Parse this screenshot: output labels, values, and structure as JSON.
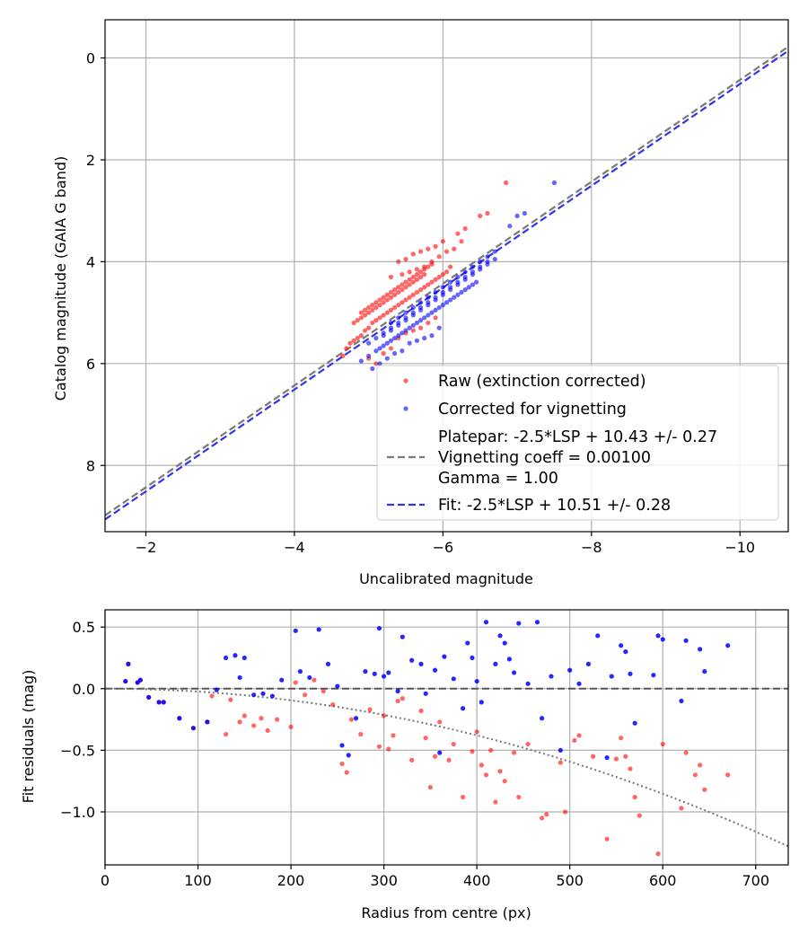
{
  "colors": {
    "raw": "#ff0000",
    "corrected": "#0000ff",
    "platepar_line": "#7a7a7a",
    "fit_line": "#3333ee",
    "zero_line": "#555555",
    "model_curve": "#777777"
  },
  "chart_data": [
    {
      "type": "scatter",
      "xlabel": "Uncalibrated magnitude",
      "ylabel": "Catalog magnitude (GAIA G band)",
      "xlim": [
        -1.45,
        -10.65
      ],
      "ylim": [
        9.3,
        -0.75
      ],
      "xticks": [
        -2,
        -4,
        -6,
        -8,
        -10
      ],
      "xtick_labels": [
        "−2",
        "−4",
        "−6",
        "−8",
        "−10"
      ],
      "yticks": [
        0,
        2,
        4,
        6,
        8
      ],
      "ytick_labels": [
        "0",
        "2",
        "4",
        "6",
        "8"
      ],
      "grid": true,
      "legend_position": "bottom-right",
      "legend": {
        "raw_label": "Raw (extinction corrected)",
        "corrected_label": "Corrected for vignetting",
        "platepar_line1": "Platepar: -2.5*LSP + 10.43 +/- 0.27",
        "platepar_line2": "Vignetting coeff = 0.00100",
        "platepar_line3": "Gamma = 1.00",
        "fit_label": "Fit: -2.5*LSP + 10.51 +/- 0.28"
      },
      "lines": [
        {
          "name": "platepar",
          "intercept": 10.43,
          "slope": 1.0
        },
        {
          "name": "fit",
          "intercept": 10.51,
          "slope": 1.0
        }
      ],
      "series": [
        {
          "name": "Raw (extinction corrected)",
          "x": [
            -4.65,
            -4.7,
            -4.75,
            -4.8,
            -4.85,
            -4.9,
            -4.95,
            -5.0,
            -5.05,
            -5.1,
            -5.15,
            -5.2,
            -5.25,
            -5.3,
            -5.35,
            -5.4,
            -5.45,
            -5.5,
            -5.55,
            -5.6,
            -5.65,
            -5.7,
            -5.75,
            -5.8,
            -5.85,
            -5.9,
            -5.95,
            -6.0,
            -6.05,
            -6.1,
            -4.9,
            -4.95,
            -5.0,
            -5.05,
            -5.1,
            -5.15,
            -5.2,
            -5.25,
            -5.3,
            -5.35,
            -5.4,
            -5.45,
            -5.5,
            -5.55,
            -5.6,
            -5.65,
            -5.7,
            -5.75,
            -5.8,
            -5.85,
            -4.8,
            -4.85,
            -4.9,
            -4.95,
            -5.0,
            -5.05,
            -5.1,
            -5.15,
            -5.2,
            -5.25,
            -5.3,
            -5.35,
            -5.4,
            -5.45,
            -5.5,
            -5.55,
            -5.6,
            -5.65,
            -5.7,
            -5.75,
            -5.4,
            -5.5,
            -5.6,
            -5.7,
            -5.8,
            -5.9,
            -6.0,
            -6.2,
            -6.3,
            -6.5,
            -6.6,
            -6.85,
            -5.3,
            -5.45,
            -5.55,
            -5.65,
            -5.75,
            -5.85,
            -5.95,
            -6.05,
            -6.15,
            -6.25,
            -5.0,
            -5.1,
            -5.2,
            -5.3,
            -5.4,
            -5.5,
            -5.6,
            -5.7,
            -5.8,
            -5.9
          ],
          "y": [
            5.85,
            5.7,
            5.6,
            5.55,
            5.5,
            5.45,
            5.35,
            5.3,
            5.2,
            5.15,
            5.1,
            5.05,
            5.0,
            4.95,
            4.9,
            4.85,
            4.8,
            4.75,
            4.7,
            4.65,
            4.6,
            4.55,
            4.5,
            4.45,
            4.4,
            4.35,
            4.3,
            4.25,
            4.2,
            4.1,
            5.0,
            4.95,
            4.9,
            4.85,
            4.8,
            4.75,
            4.7,
            4.65,
            4.6,
            4.55,
            4.5,
            4.45,
            4.4,
            4.35,
            4.3,
            4.25,
            4.2,
            4.15,
            4.1,
            4.05,
            5.2,
            5.15,
            5.1,
            5.05,
            5.0,
            4.95,
            4.9,
            4.85,
            4.8,
            4.75,
            4.7,
            4.65,
            4.6,
            4.55,
            4.5,
            4.45,
            4.4,
            4.35,
            4.3,
            4.25,
            4.0,
            3.95,
            3.85,
            3.8,
            3.75,
            3.7,
            3.6,
            3.45,
            3.35,
            3.1,
            3.05,
            2.45,
            4.3,
            4.25,
            4.2,
            4.15,
            4.1,
            4.0,
            3.9,
            3.8,
            3.75,
            3.6,
            5.9,
            6.0,
            5.8,
            5.7,
            5.5,
            5.4,
            5.35,
            5.3,
            5.2,
            5.1
          ]
        },
        {
          "name": "Corrected for vignetting",
          "x": [
            -4.9,
            -5.0,
            -5.1,
            -5.15,
            -5.2,
            -5.25,
            -5.3,
            -5.35,
            -5.4,
            -5.45,
            -5.5,
            -5.55,
            -5.6,
            -5.65,
            -5.7,
            -5.75,
            -5.8,
            -5.85,
            -5.9,
            -5.95,
            -6.0,
            -6.05,
            -6.1,
            -6.15,
            -6.2,
            -6.25,
            -6.3,
            -6.35,
            -6.4,
            -6.45,
            -5.3,
            -5.4,
            -5.5,
            -5.6,
            -5.7,
            -5.8,
            -5.9,
            -6.0,
            -6.1,
            -6.2,
            -6.3,
            -6.4,
            -6.5,
            -6.6,
            -5.2,
            -5.3,
            -5.4,
            -5.5,
            -5.6,
            -5.7,
            -5.8,
            -5.9,
            -6.0,
            -6.1,
            -6.2,
            -6.3,
            -6.4,
            -6.5,
            -6.6,
            -6.7,
            -5.0,
            -5.1,
            -5.2,
            -5.3,
            -5.4,
            -5.5,
            -5.6,
            -5.7,
            -5.8,
            -5.9,
            -6.0,
            -6.1,
            -6.2,
            -6.3,
            -6.4,
            -6.5,
            -6.6,
            -6.7,
            -6.9,
            -7.0,
            -7.1,
            -7.5,
            -5.05,
            -5.15,
            -5.25,
            -5.35,
            -5.45,
            -5.55,
            -5.65,
            -5.75,
            -5.85,
            -5.95
          ],
          "y": [
            5.95,
            5.85,
            5.75,
            5.7,
            5.65,
            5.6,
            5.55,
            5.5,
            5.45,
            5.4,
            5.35,
            5.3,
            5.25,
            5.2,
            5.15,
            5.1,
            5.05,
            5.0,
            4.95,
            4.9,
            4.85,
            4.8,
            4.75,
            4.7,
            4.65,
            4.6,
            4.55,
            4.5,
            4.45,
            4.4,
            5.2,
            5.1,
            5.0,
            4.9,
            4.8,
            4.7,
            4.6,
            4.5,
            4.4,
            4.3,
            4.2,
            4.1,
            4.0,
            3.9,
            5.45,
            5.35,
            5.25,
            5.15,
            5.05,
            4.95,
            4.85,
            4.75,
            4.65,
            4.55,
            4.45,
            4.35,
            4.25,
            4.15,
            4.05,
            3.95,
            5.6,
            5.5,
            5.4,
            5.3,
            5.2,
            5.1,
            5.0,
            4.9,
            4.8,
            4.7,
            4.6,
            4.5,
            4.4,
            4.3,
            4.2,
            4.1,
            4.0,
            3.8,
            3.3,
            3.1,
            3.05,
            2.45,
            6.1,
            6.0,
            5.9,
            5.8,
            5.75,
            5.6,
            5.55,
            5.5,
            5.45,
            5.3
          ]
        }
      ]
    },
    {
      "type": "scatter",
      "xlabel": "Radius from centre (px)",
      "ylabel": "Fit residuals (mag)",
      "xlim": [
        0,
        735
      ],
      "ylim": [
        -1.43,
        0.64
      ],
      "xticks": [
        0,
        100,
        200,
        300,
        400,
        500,
        600,
        700
      ],
      "xtick_labels": [
        "0",
        "100",
        "200",
        "300",
        "400",
        "500",
        "600",
        "700"
      ],
      "yticks": [
        0.5,
        0.0,
        -0.5,
        -1.0
      ],
      "ytick_labels": [
        "0.5",
        "0.0",
        "−0.5",
        "−1.0"
      ],
      "grid": true,
      "zero_line": 0.0,
      "model_curve": {
        "name": "vignetting model",
        "coeff": 0.001,
        "end_value": -1.28
      },
      "series": [
        {
          "name": "Raw (extinction corrected)",
          "x": [
            22,
            25,
            35,
            38,
            47,
            58,
            63,
            80,
            95,
            110,
            115,
            130,
            135,
            145,
            150,
            160,
            168,
            175,
            185,
            200,
            205,
            215,
            225,
            235,
            245,
            255,
            260,
            265,
            275,
            285,
            295,
            300,
            305,
            310,
            315,
            320,
            330,
            340,
            345,
            350,
            355,
            360,
            370,
            375,
            385,
            395,
            400,
            405,
            410,
            415,
            420,
            425,
            430,
            440,
            445,
            455,
            470,
            475,
            490,
            495,
            505,
            510,
            525,
            540,
            550,
            555,
            560,
            565,
            570,
            575,
            595,
            600,
            620,
            625,
            635,
            640,
            645,
            670
          ],
          "y": [
            0.06,
            0.2,
            0.05,
            0.07,
            -0.07,
            -0.11,
            -0.11,
            -0.24,
            -0.32,
            -0.27,
            -0.06,
            -0.37,
            -0.09,
            -0.27,
            -0.22,
            -0.3,
            -0.24,
            -0.34,
            -0.25,
            -0.31,
            0.05,
            -0.05,
            0.07,
            -0.02,
            -0.13,
            -0.61,
            -0.68,
            -0.25,
            -0.37,
            -0.17,
            -0.47,
            -0.22,
            -0.49,
            -0.38,
            -0.1,
            -0.08,
            -0.58,
            -0.18,
            -0.4,
            -0.8,
            -0.55,
            -0.27,
            -0.58,
            -0.45,
            -0.88,
            -0.51,
            -0.35,
            -0.62,
            -0.7,
            -0.5,
            -0.92,
            -0.67,
            -0.75,
            -0.52,
            -0.88,
            -0.45,
            -1.05,
            -1.02,
            -0.6,
            -1.0,
            -0.42,
            -0.38,
            -0.55,
            -1.22,
            -0.57,
            -0.4,
            -0.55,
            -0.65,
            -0.88,
            -1.03,
            -1.34,
            -0.45,
            -0.97,
            -0.52,
            -0.7,
            -0.62,
            -0.82,
            -0.7
          ]
        },
        {
          "name": "Corrected for vignetting",
          "x": [
            22,
            25,
            35,
            38,
            47,
            58,
            63,
            80,
            95,
            110,
            120,
            130,
            140,
            145,
            150,
            160,
            170,
            180,
            190,
            205,
            210,
            220,
            230,
            240,
            250,
            255,
            262,
            270,
            280,
            290,
            295,
            300,
            305,
            315,
            320,
            330,
            340,
            345,
            355,
            360,
            365,
            375,
            385,
            390,
            395,
            400,
            405,
            410,
            420,
            425,
            430,
            435,
            440,
            445,
            455,
            465,
            470,
            480,
            490,
            500,
            510,
            520,
            530,
            540,
            545,
            555,
            560,
            565,
            570,
            590,
            595,
            600,
            620,
            625,
            640,
            645,
            670
          ],
          "y": [
            0.06,
            0.2,
            0.05,
            0.07,
            -0.07,
            -0.11,
            -0.11,
            -0.24,
            -0.32,
            -0.27,
            -0.01,
            0.25,
            0.27,
            0.09,
            0.25,
            -0.05,
            -0.04,
            -0.06,
            0.07,
            0.47,
            0.14,
            0.09,
            0.48,
            0.2,
            0.02,
            -0.46,
            -0.54,
            -0.24,
            0.14,
            0.12,
            0.49,
            0.1,
            0.13,
            -0.02,
            0.42,
            0.23,
            0.2,
            -0.04,
            0.15,
            -0.52,
            0.26,
            0.08,
            -0.16,
            0.37,
            0.25,
            0.06,
            -0.11,
            0.54,
            0.2,
            0.43,
            0.37,
            0.24,
            0.13,
            0.53,
            0.04,
            0.54,
            -0.24,
            0.1,
            -0.5,
            0.15,
            0.04,
            0.2,
            0.43,
            -0.56,
            0.1,
            0.35,
            0.3,
            0.12,
            -0.28,
            0.11,
            0.43,
            0.4,
            -0.1,
            0.39,
            0.32,
            0.14,
            0.35
          ]
        }
      ]
    }
  ]
}
